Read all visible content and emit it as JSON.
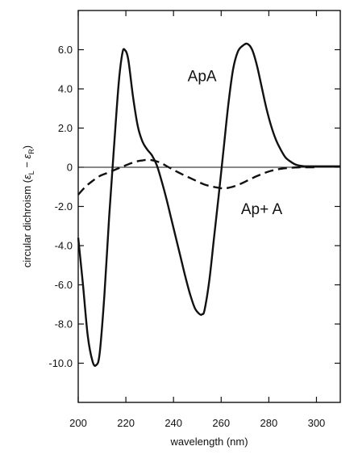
{
  "chart_data": {
    "type": "line",
    "title": "",
    "xlabel": "wavelength (nm)",
    "ylabel": {
      "main": "circular dichroism (",
      "eps": "ε",
      "sub_l": "L",
      "minus": " − ",
      "sub_r": "R",
      "close": ")"
    },
    "xlim": [
      200,
      310
    ],
    "ylim": [
      -12,
      8
    ],
    "xticks": [
      200,
      220,
      240,
      260,
      280,
      300
    ],
    "yticks": [
      6,
      4,
      2,
      0,
      -2,
      -4,
      -6,
      -8,
      -10
    ],
    "ytick_labels": [
      "6.0",
      "4.0",
      "2.0",
      "0",
      "-2.0",
      "-4.0",
      "-6.0",
      "-8.0",
      "-10.0"
    ],
    "zero_line": true,
    "grid": false,
    "series": [
      {
        "name": "ApA",
        "style": "solid",
        "x": [
          200,
          202,
          204,
          206,
          207.5,
          209,
          211,
          213,
          215,
          217,
          218.5,
          219.5,
          221,
          223,
          225,
          227,
          229,
          231,
          233,
          235,
          237,
          239,
          241,
          243,
          245,
          247,
          249,
          251,
          252,
          253,
          255,
          257,
          259,
          261,
          263,
          265,
          267,
          269,
          271,
          273,
          275,
          277,
          279,
          281,
          283,
          285,
          287,
          289,
          291,
          293,
          295,
          297,
          300,
          305,
          310
        ],
        "y": [
          -3.6,
          -6.0,
          -8.6,
          -9.9,
          -10.1,
          -9.5,
          -6.5,
          -2.5,
          1.0,
          4.3,
          5.8,
          6.0,
          5.5,
          3.6,
          2.1,
          1.3,
          0.9,
          0.6,
          0.1,
          -0.7,
          -1.6,
          -2.6,
          -3.6,
          -4.6,
          -5.6,
          -6.5,
          -7.2,
          -7.5,
          -7.5,
          -7.3,
          -5.8,
          -3.6,
          -1.4,
          0.9,
          3.2,
          5.0,
          5.9,
          6.2,
          6.3,
          6.0,
          5.2,
          4.1,
          3.0,
          2.1,
          1.4,
          0.9,
          0.5,
          0.3,
          0.15,
          0.08,
          0.05,
          0.05,
          0.05,
          0.05,
          0.05
        ]
      },
      {
        "name": "Ap+ A",
        "style": "dashed",
        "x": [
          200,
          203,
          206,
          209,
          212,
          215,
          218,
          221,
          224,
          227,
          229,
          231,
          233,
          235,
          238,
          241,
          244,
          247,
          250,
          253,
          256,
          259,
          261,
          263,
          266,
          269,
          272,
          275,
          278,
          281,
          284,
          287,
          290,
          293,
          296,
          300
        ],
        "y": [
          -1.4,
          -1.0,
          -0.7,
          -0.45,
          -0.3,
          -0.15,
          0.0,
          0.15,
          0.28,
          0.35,
          0.38,
          0.36,
          0.3,
          0.2,
          0.0,
          -0.2,
          -0.38,
          -0.55,
          -0.72,
          -0.88,
          -0.98,
          -1.05,
          -1.08,
          -1.05,
          -0.95,
          -0.8,
          -0.62,
          -0.45,
          -0.3,
          -0.18,
          -0.1,
          -0.05,
          -0.02,
          0.0,
          0.0,
          0.0
        ]
      }
    ],
    "annotations": [
      {
        "text": "ApA",
        "x": 252,
        "y": 4.4,
        "series": "ApA"
      },
      {
        "text": "Ap+ A",
        "x": 277,
        "y": -2.4,
        "series": "Ap+ A"
      }
    ]
  }
}
